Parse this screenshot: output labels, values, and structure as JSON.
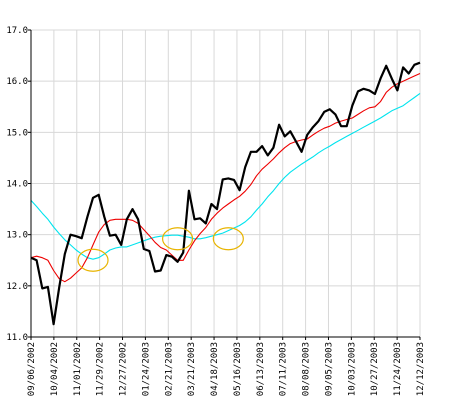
{
  "chart_data": {
    "type": "line",
    "title": "",
    "xlabel": "",
    "ylabel": "",
    "ylim": [
      11.0,
      17.0
    ],
    "grid": true,
    "y_ticks": [
      "11.0",
      "12.0",
      "13.0",
      "14.0",
      "15.0",
      "16.0",
      "17.0"
    ],
    "x_ticks": [
      "09/06/2002",
      "10/04/2002",
      "11/01/2002",
      "11/29/2002",
      "12/27/2002",
      "01/24/2003",
      "02/21/2003",
      "03/21/2003",
      "04/18/2003",
      "05/16/2003",
      "06/13/2003",
      "07/11/2003",
      "08/08/2003",
      "09/05/2003",
      "10/03/2003",
      "10/27/2003",
      "11/24/2003",
      "12/12/2003"
    ],
    "series": [
      {
        "color": "#000000",
        "values": [
          12.55,
          12.5,
          11.95,
          11.98,
          11.25,
          11.97,
          12.62,
          13.0,
          12.97,
          12.93,
          13.35,
          13.72,
          13.78,
          13.35,
          12.98,
          13.0,
          12.8,
          13.3,
          13.5,
          13.3,
          12.72,
          12.68,
          12.28,
          12.3,
          12.6,
          12.57,
          12.47,
          12.65,
          13.86,
          13.3,
          13.32,
          13.22,
          13.6,
          13.5,
          14.08,
          14.1,
          14.07,
          13.87,
          14.32,
          14.62,
          14.62,
          14.73,
          14.55,
          14.7,
          15.15,
          14.92,
          15.02,
          14.82,
          14.62,
          14.95,
          15.1,
          15.22,
          15.4,
          15.45,
          15.35,
          15.12,
          15.12,
          15.52,
          15.8,
          15.85,
          15.82,
          15.75,
          16.05,
          16.3,
          16.05,
          15.82,
          16.27,
          16.15,
          16.32,
          16.36
        ]
      },
      {
        "color": "#ee0000",
        "values": [
          12.55,
          12.58,
          12.55,
          12.5,
          12.3,
          12.14,
          12.08,
          12.15,
          12.25,
          12.35,
          12.55,
          12.8,
          13.05,
          13.2,
          13.28,
          13.3,
          13.3,
          13.3,
          13.28,
          13.22,
          13.1,
          12.98,
          12.85,
          12.75,
          12.7,
          12.6,
          12.5,
          12.5,
          12.7,
          12.88,
          13.02,
          13.14,
          13.3,
          13.42,
          13.52,
          13.6,
          13.68,
          13.75,
          13.85,
          13.98,
          14.15,
          14.28,
          14.38,
          14.48,
          14.6,
          14.7,
          14.78,
          14.82,
          14.85,
          14.87,
          14.95,
          15.02,
          15.08,
          15.12,
          15.18,
          15.22,
          15.25,
          15.28,
          15.35,
          15.42,
          15.48,
          15.5,
          15.6,
          15.78,
          15.88,
          15.95,
          16.0,
          16.05,
          16.1,
          16.15
        ]
      },
      {
        "color": "#00e4ee",
        "values": [
          13.67,
          13.55,
          13.42,
          13.3,
          13.15,
          13.02,
          12.9,
          12.8,
          12.7,
          12.62,
          12.55,
          12.52,
          12.55,
          12.62,
          12.7,
          12.74,
          12.76,
          12.76,
          12.8,
          12.84,
          12.88,
          12.92,
          12.95,
          12.97,
          12.98,
          12.99,
          12.99,
          12.97,
          12.95,
          12.92,
          12.92,
          12.94,
          12.97,
          13.0,
          13.03,
          13.08,
          13.13,
          13.18,
          13.25,
          13.35,
          13.48,
          13.6,
          13.74,
          13.86,
          14.0,
          14.12,
          14.22,
          14.3,
          14.38,
          14.45,
          14.52,
          14.6,
          14.67,
          14.73,
          14.8,
          14.86,
          14.92,
          14.98,
          15.04,
          15.1,
          15.16,
          15.22,
          15.28,
          15.35,
          15.42,
          15.47,
          15.52,
          15.6,
          15.68,
          15.76
        ]
      }
    ],
    "annotations": [
      {
        "type": "ellipse",
        "color": "#e8b400",
        "x_index": 11,
        "y": 12.5
      },
      {
        "type": "ellipse",
        "color": "#e8b400",
        "x_index": 26,
        "y": 12.92
      },
      {
        "type": "ellipse",
        "color": "#e8b400",
        "x_index": 35,
        "y": 12.92
      }
    ]
  }
}
